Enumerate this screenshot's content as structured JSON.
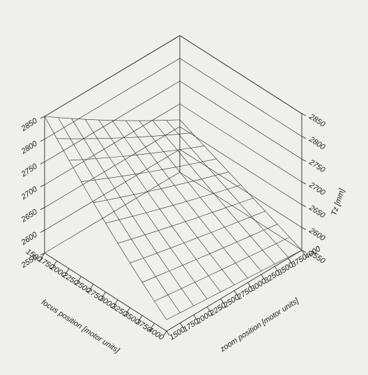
{
  "chart_data": {
    "type": "surface",
    "title": "",
    "xlabel": "focus position [motor units]",
    "ylabel": "zoom position [motor units]",
    "zlabel": "Tz [mm]",
    "xlim": [
      1500,
      4000
    ],
    "ylim": [
      1500,
      4000
    ],
    "zlim": [
      2550,
      2850
    ],
    "x_ticks": [
      "1500",
      "1750",
      "2000",
      "2250",
      "2500",
      "2750",
      "3000",
      "3250",
      "3500",
      "3750",
      "4000"
    ],
    "y_ticks": [
      "1500",
      "1750",
      "2000",
      "2250",
      "2500",
      "2750",
      "3000",
      "3250",
      "3500",
      "3750",
      "4000"
    ],
    "z_ticks_left": [
      "2550",
      "2600",
      "2650",
      "2700",
      "2750",
      "2800",
      "2850"
    ],
    "z_ticks_right": [
      "2550",
      "2600",
      "2650",
      "2700",
      "2750",
      "2800",
      "2850"
    ],
    "surface": {
      "x": [
        1500,
        1750,
        2000,
        2250,
        2500,
        2750,
        3000,
        3250,
        3500,
        3750,
        4000
      ],
      "y": [
        1500,
        1750,
        2000,
        2250,
        2500,
        2750,
        3000,
        3250,
        3500,
        3750,
        4000
      ],
      "z_corners": {
        "x1500_y1500": 2850,
        "x4000_y1500": 2575,
        "x1500_y4000": 2665,
        "x4000_y4000": 2550
      },
      "grid": "11x11"
    },
    "grid": true
  }
}
